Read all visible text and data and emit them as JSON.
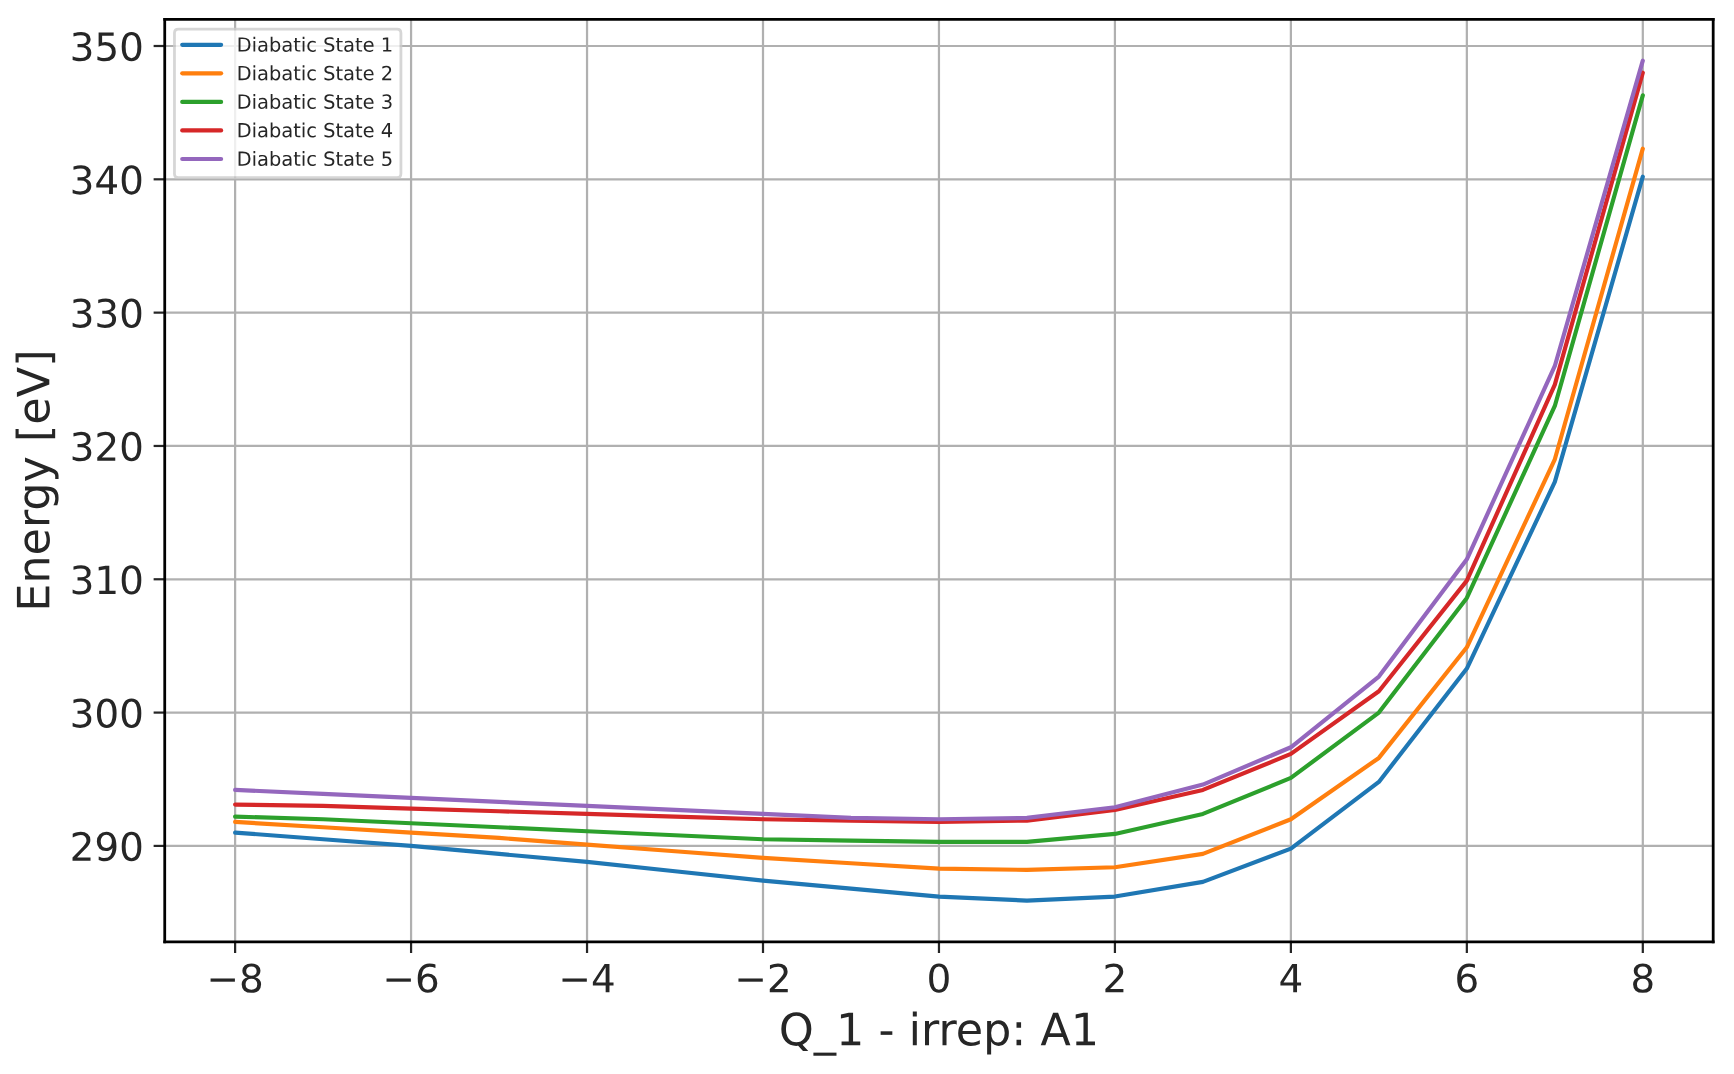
{
  "chart_data": {
    "type": "line",
    "xlabel": "Q_1 - irrep: A1",
    "ylabel": "Energy [eV]",
    "x": [
      -8,
      -7,
      -6,
      -5,
      -4,
      -3,
      -2,
      -1,
      0,
      1,
      2,
      3,
      4,
      5,
      6,
      7,
      8
    ],
    "series": [
      {
        "name": "Diabatic State 1",
        "color": "#1f77b4",
        "values": [
          291.0,
          290.5,
          290.0,
          289.4,
          288.8,
          288.1,
          287.4,
          286.8,
          286.2,
          285.9,
          286.2,
          287.3,
          289.8,
          294.8,
          303.3,
          317.3,
          340.2
        ]
      },
      {
        "name": "Diabatic State 2",
        "color": "#ff7f0e",
        "values": [
          291.8,
          291.4,
          291.0,
          290.6,
          290.1,
          289.6,
          289.1,
          288.7,
          288.3,
          288.2,
          288.4,
          289.4,
          292.0,
          296.6,
          304.9,
          319.0,
          342.3
        ]
      },
      {
        "name": "Diabatic State 3",
        "color": "#2ca02c",
        "values": [
          292.2,
          292.0,
          291.7,
          291.4,
          291.1,
          290.8,
          290.5,
          290.4,
          290.3,
          290.3,
          290.9,
          292.4,
          295.1,
          300.0,
          308.6,
          323.0,
          346.3
        ]
      },
      {
        "name": "Diabatic State 4",
        "color": "#d62728",
        "values": [
          293.1,
          293.0,
          292.8,
          292.6,
          292.4,
          292.2,
          292.0,
          291.9,
          291.8,
          291.9,
          292.7,
          294.2,
          296.9,
          301.6,
          309.9,
          324.6,
          348.0
        ]
      },
      {
        "name": "Diabatic State 5",
        "color": "#9467bd",
        "values": [
          294.2,
          293.9,
          293.6,
          293.3,
          293.0,
          292.7,
          292.4,
          292.1,
          292.0,
          292.1,
          292.9,
          294.6,
          297.4,
          302.7,
          311.5,
          326.0,
          348.9
        ]
      }
    ],
    "xlim": [
      -8.8,
      8.8
    ],
    "ylim": [
      282.8,
      352.0
    ],
    "xticks": [
      {
        "value": -8,
        "label": "−8"
      },
      {
        "value": -6,
        "label": "−6"
      },
      {
        "value": -4,
        "label": "−4"
      },
      {
        "value": -2,
        "label": "−2"
      },
      0,
      2,
      4,
      6,
      8
    ],
    "yticks": [
      290,
      300,
      310,
      320,
      330,
      340,
      350
    ],
    "grid": true,
    "legend": "top left",
    "line_style": "solid",
    "marker": "none"
  }
}
